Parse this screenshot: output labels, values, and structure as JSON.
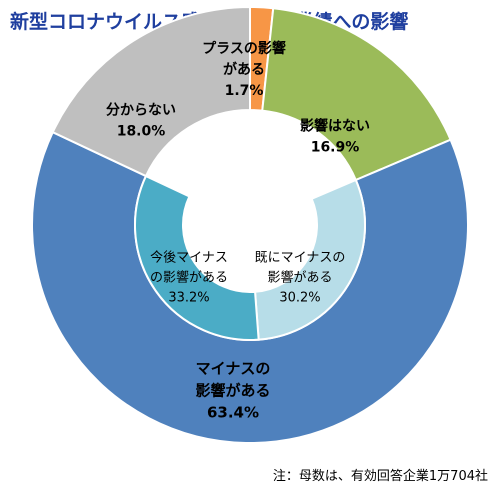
{
  "chart_data": {
    "type": "pie",
    "subtype": "nested-donut",
    "title": "新型コロナウイルス感染症による業績への影響",
    "note": "注：母数は、有効回答企業1万704社",
    "outer_ring": [
      {
        "label_lines": [
          "プラスの影響",
          "がある"
        ],
        "value": 1.7,
        "value_label": "1.7%",
        "color": "#f79646"
      },
      {
        "label_lines": [
          "影響はない"
        ],
        "value": 16.9,
        "value_label": "16.9%",
        "color": "#9bbb59"
      },
      {
        "label_lines": [
          "マイナスの",
          "影響がある"
        ],
        "value": 63.4,
        "value_label": "63.4%",
        "color": "#4f81bd"
      },
      {
        "label_lines": [
          "分からない"
        ],
        "value": 18.0,
        "value_label": "18.0%",
        "color": "#bfbfbf"
      }
    ],
    "inner_ring": [
      {
        "label_lines": [
          "既にマイナスの",
          "影響がある"
        ],
        "value": 30.2,
        "value_label": "30.2%",
        "color": "#b7dde8"
      },
      {
        "label_lines": [
          "今後マイナス",
          "の影響がある"
        ],
        "value": 33.2,
        "value_label": "33.2%",
        "color": "#4bacc6"
      }
    ]
  }
}
